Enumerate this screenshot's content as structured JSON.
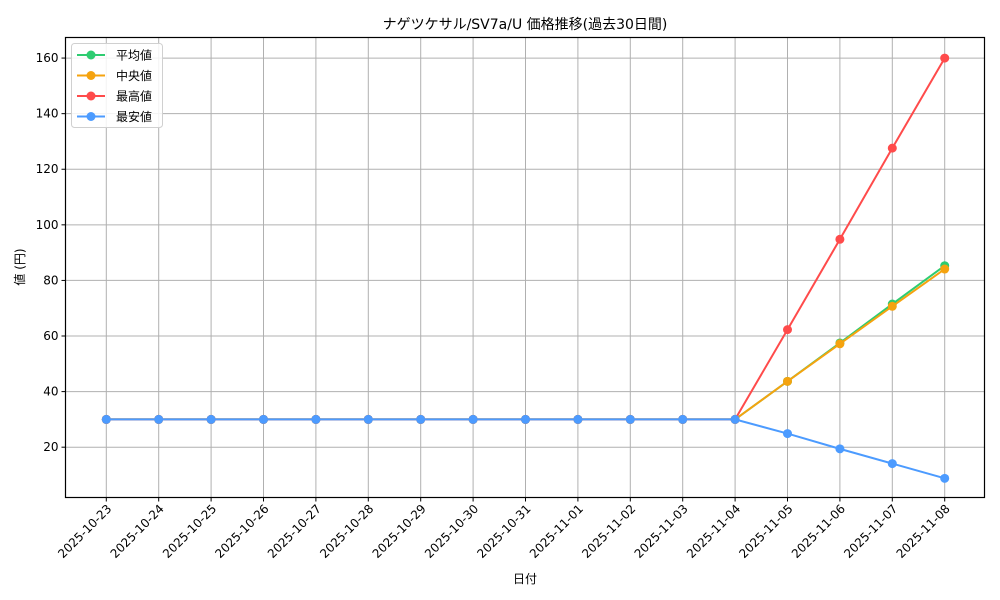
{
  "chart_data": {
    "type": "line",
    "title": "ナゲツケサル/SV7a/U 価格推移(過去30日間)",
    "xlabel": "日付",
    "ylabel": "値 (円)",
    "x": [
      "2025-10-23",
      "2025-10-24",
      "2025-10-25",
      "2025-10-26",
      "2025-10-27",
      "2025-10-28",
      "2025-10-29",
      "2025-10-30",
      "2025-10-31",
      "2025-11-01",
      "2025-11-02",
      "2025-11-03",
      "2025-11-04",
      "2025-11-05",
      "2025-11-06",
      "2025-11-07",
      "2025-11-08"
    ],
    "yticks": [
      20,
      40,
      60,
      80,
      100,
      120,
      140,
      160
    ],
    "ylim": [
      1.9,
      167.4
    ],
    "grid": true,
    "legend_position": "upper left",
    "series": [
      {
        "name": "平均値",
        "color": "#2ecc71",
        "values": [
          30,
          30,
          30,
          30,
          30,
          30,
          30,
          30,
          30,
          30,
          30,
          30,
          30,
          43.7,
          57.5,
          71.5,
          85.3
        ]
      },
      {
        "name": "中央値",
        "color": "#f5a30f",
        "values": [
          30,
          30,
          30,
          30,
          30,
          30,
          30,
          30,
          30,
          30,
          30,
          30,
          30,
          43.7,
          57.2,
          70.7,
          84.1
        ]
      },
      {
        "name": "最高値",
        "color": "#ff4b4b",
        "values": [
          30,
          30,
          30,
          30,
          30,
          30,
          30,
          30,
          30,
          30,
          30,
          30,
          30,
          62.3,
          94.8,
          127.6,
          160
        ]
      },
      {
        "name": "最安値",
        "color": "#4c9bff",
        "values": [
          30,
          30,
          30,
          30,
          30,
          30,
          30,
          30,
          30,
          30,
          30,
          30,
          30,
          24.9,
          19.4,
          14.1,
          8.8
        ]
      }
    ]
  }
}
